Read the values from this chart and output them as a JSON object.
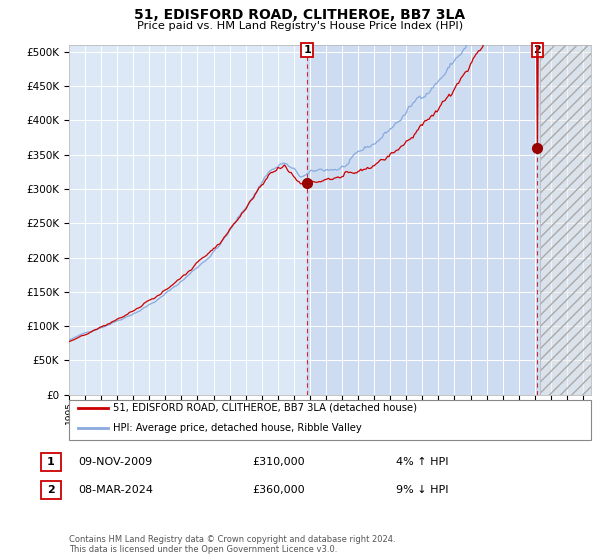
{
  "title": "51, EDISFORD ROAD, CLITHEROE, BB7 3LA",
  "subtitle": "Price paid vs. HM Land Registry's House Price Index (HPI)",
  "ylim": [
    0,
    510000
  ],
  "yticks": [
    0,
    50000,
    100000,
    150000,
    200000,
    250000,
    300000,
    350000,
    400000,
    450000,
    500000
  ],
  "bg_color": "#ffffff",
  "plot_bg": "#dce8f5",
  "shade_bg": "#c8d8f0",
  "grid_color": "#ffffff",
  "red_color": "#cc0000",
  "blue_color": "#88aadd",
  "marker1_val": 310000,
  "marker2_val": 360000,
  "sale1_date": "09-NOV-2009",
  "sale1_price": "£310,000",
  "sale1_hpi": "4% ↑ HPI",
  "sale2_date": "08-MAR-2024",
  "sale2_price": "£360,000",
  "sale2_hpi": "9% ↓ HPI",
  "legend1": "51, EDISFORD ROAD, CLITHEROE, BB7 3LA (detached house)",
  "legend2": "HPI: Average price, detached house, Ribble Valley",
  "footer": "Contains HM Land Registry data © Crown copyright and database right 2024.\nThis data is licensed under the Open Government Licence v3.0.",
  "start_year": 1995,
  "end_year": 2027,
  "xlim_start": 1995,
  "xlim_end": 2027.5,
  "hatch_start": 2024.33,
  "hatch_end": 2027.5,
  "shade_start_year": 2009.83,
  "dashed_color": "#cc0000"
}
